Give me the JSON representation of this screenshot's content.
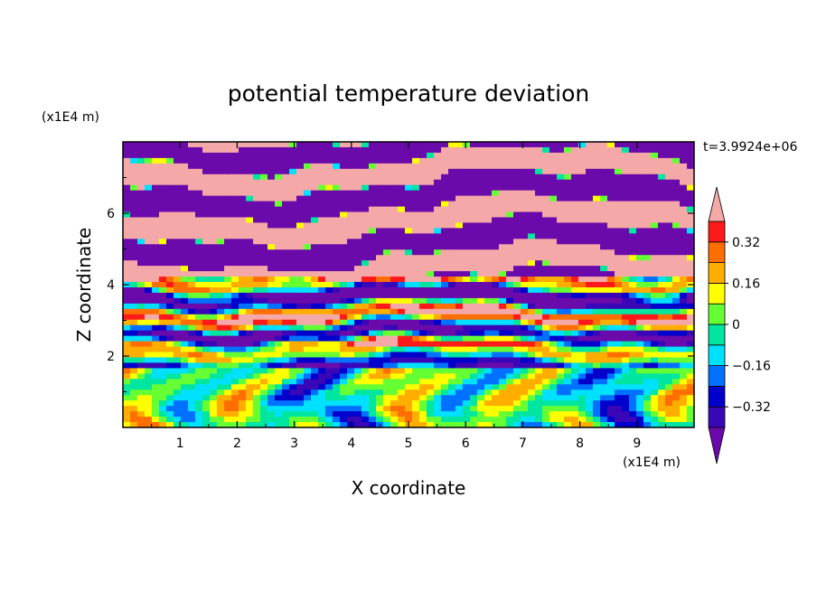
{
  "chart_data": {
    "type": "heatmap",
    "title": "potential temperature deviation",
    "xlabel": "X coordinate",
    "ylabel": "Z coordinate",
    "x_unit": "(x1E4 m)",
    "y_unit": "(x1E4 m)",
    "time_label": "t=3.9924e+06",
    "xlim": [
      0,
      10
    ],
    "ylim": [
      0,
      8
    ],
    "x_ticks": [
      "1",
      "2",
      "3",
      "4",
      "5",
      "6",
      "7",
      "8",
      "9"
    ],
    "y_ticks": [
      "2",
      "4",
      "6"
    ],
    "x_tick_values": [
      1,
      2,
      3,
      4,
      5,
      6,
      7,
      8,
      9
    ],
    "y_tick_values": [
      2,
      4,
      6
    ],
    "colorbar": {
      "levels": [
        -0.4,
        -0.32,
        -0.24,
        -0.16,
        -0.08,
        0,
        0.08,
        0.16,
        0.24,
        0.32,
        0.4
      ],
      "colors": [
        "#6a0aab",
        "#3a07b8",
        "#0000cc",
        "#0070ff",
        "#00e0ff",
        "#00e6a0",
        "#66ff33",
        "#ffff00",
        "#ffae00",
        "#ff6e00",
        "#ff1a1a",
        "#f4a8a8"
      ],
      "labels": [
        "0.32",
        "0.16",
        "0",
        "−0.16",
        "−0.32"
      ],
      "label_values": [
        0.32,
        0.16,
        0,
        -0.16,
        -0.32
      ],
      "extend": "both"
    },
    "grid": false,
    "legend": "right"
  }
}
